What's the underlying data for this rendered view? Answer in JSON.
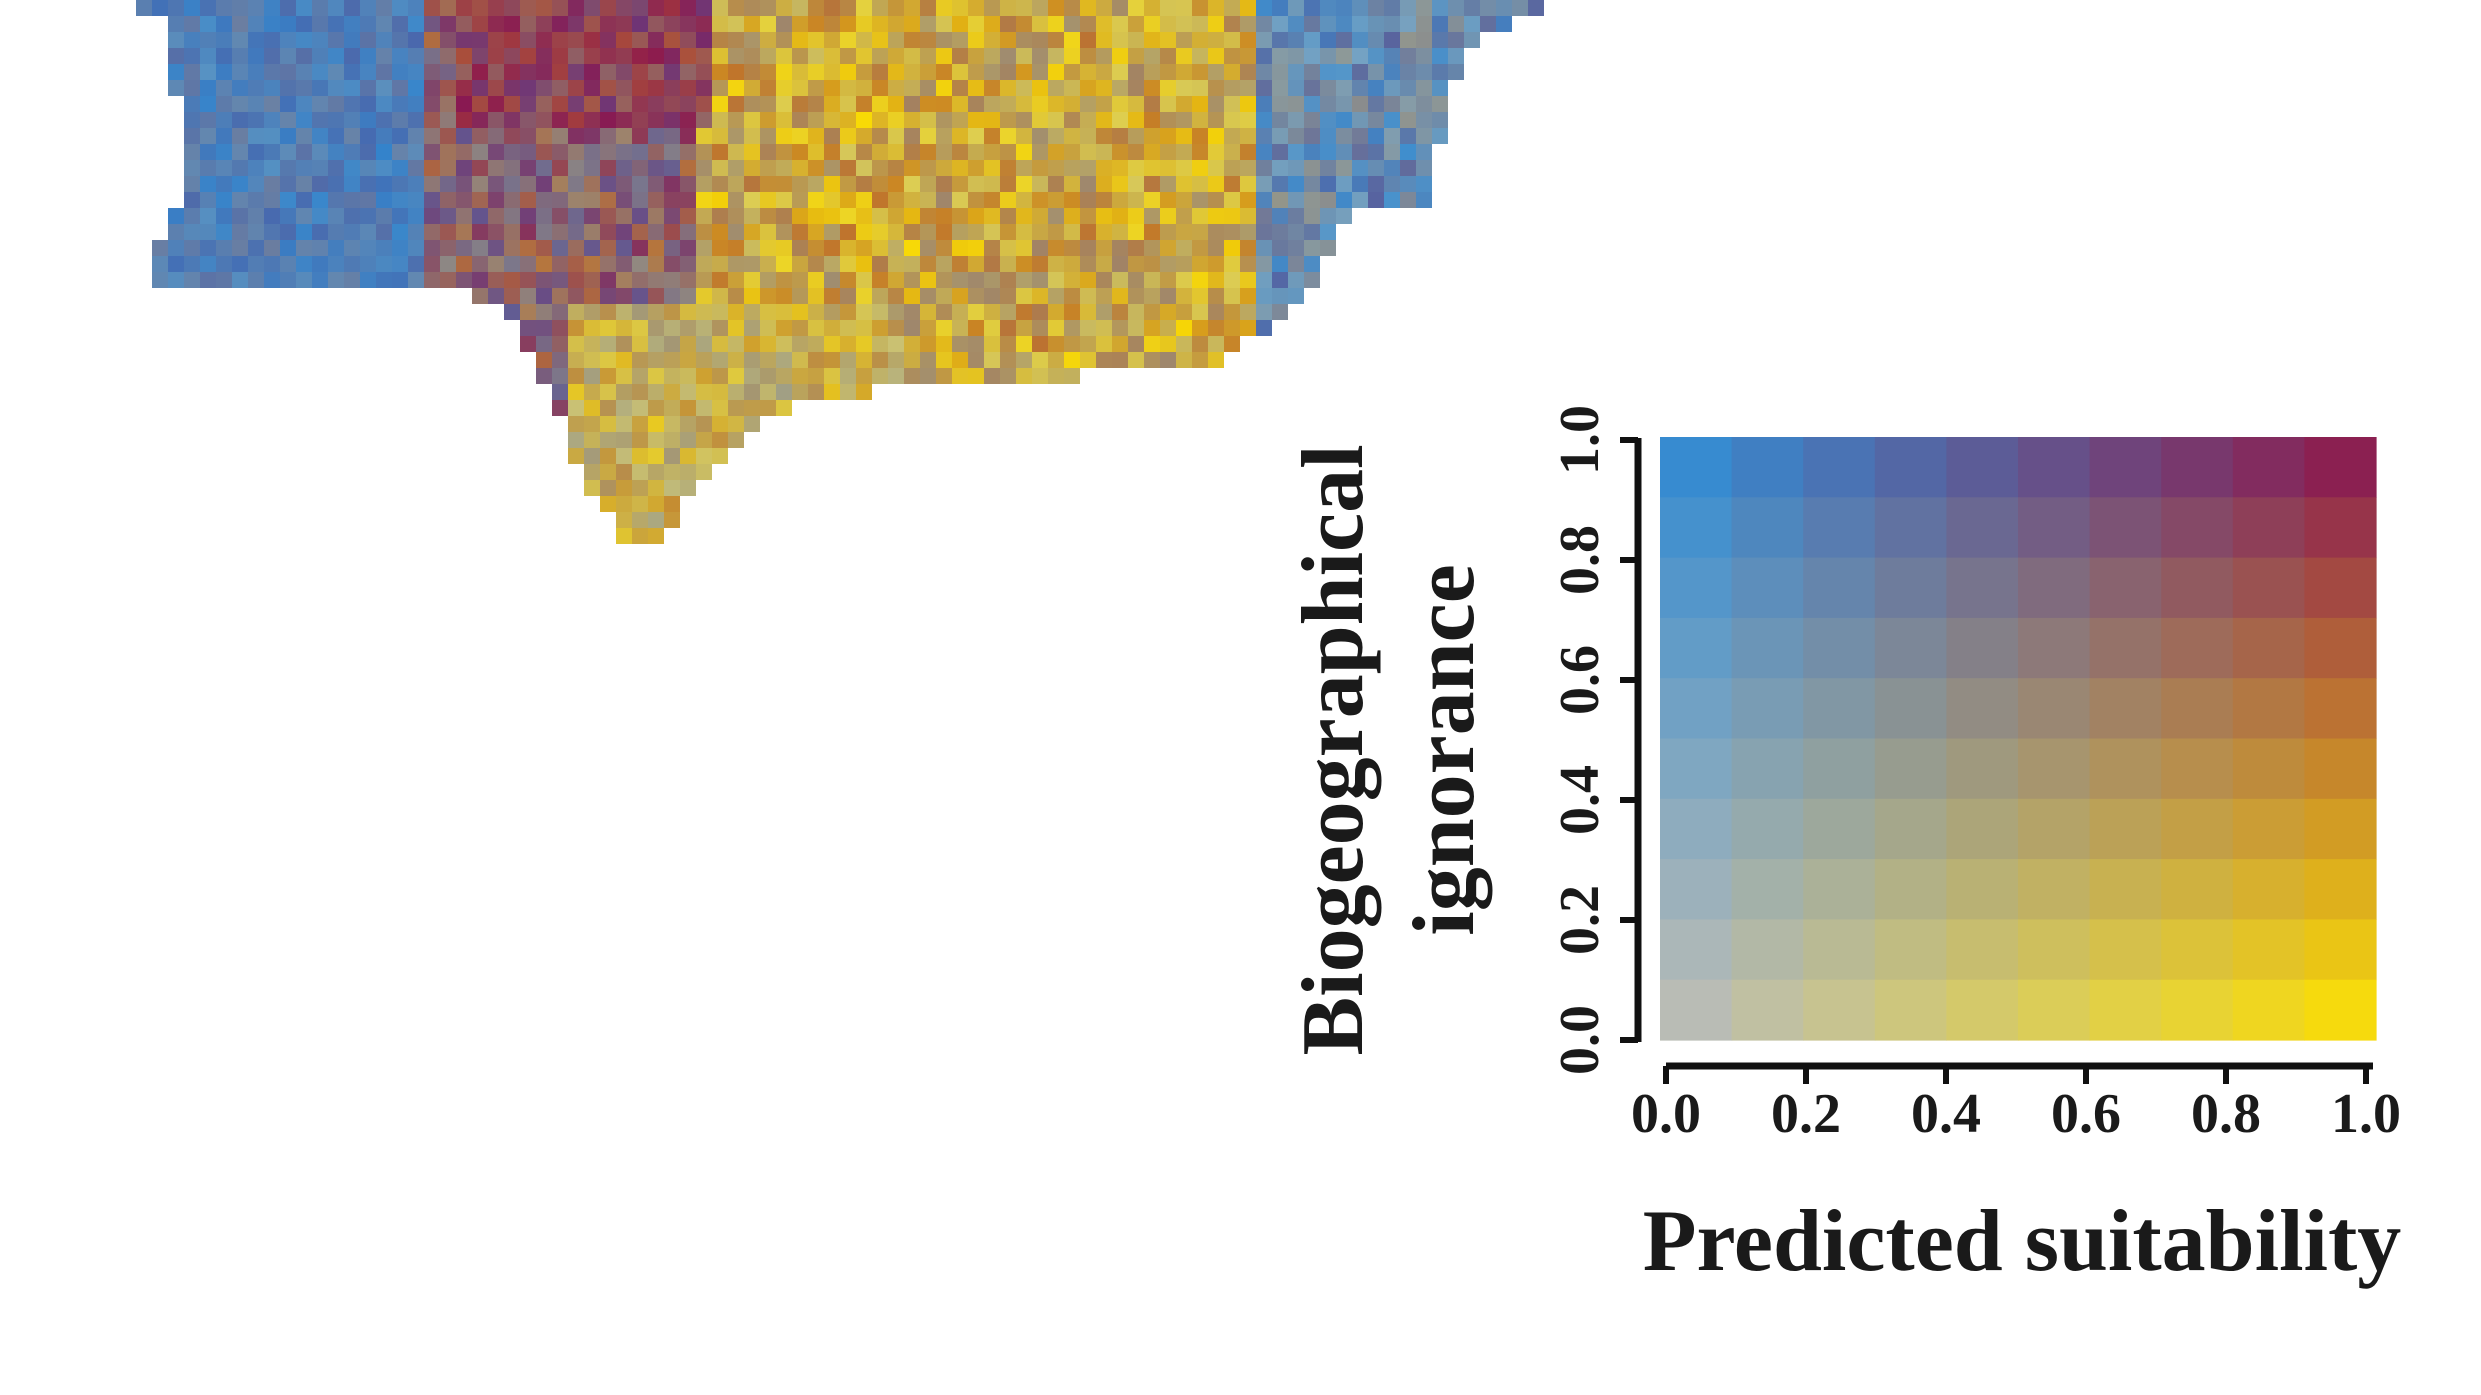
{
  "legend": {
    "x_title": "Predicted suitability",
    "y_title_line1": "Biogeographical",
    "y_title_line2": "ignorance",
    "x_ticks": [
      "0.0",
      "0.2",
      "0.4",
      "0.6",
      "0.8",
      "1.0"
    ],
    "y_ticks": [
      "0.0",
      "0.2",
      "0.4",
      "0.6",
      "0.8",
      "1.0"
    ],
    "x_range": [
      0,
      1
    ],
    "y_range": [
      0,
      1
    ],
    "grid_cols": 10,
    "grid_rows": 10,
    "corner_colors": {
      "low_suitability_low_ignorance": "#bdbdbd",
      "high_suitability_low_ignorance": "#ffe600",
      "low_suitability_high_ignorance": "#2b8fd8",
      "high_suitability_high_ignorance": "#8a0f4e"
    }
  },
  "map": {
    "description_colors": [
      "#2f7fd0",
      "#ffe31a",
      "#e0a020",
      "#8a5a7a",
      "#c9c58a",
      "#a0adb8"
    ]
  }
}
